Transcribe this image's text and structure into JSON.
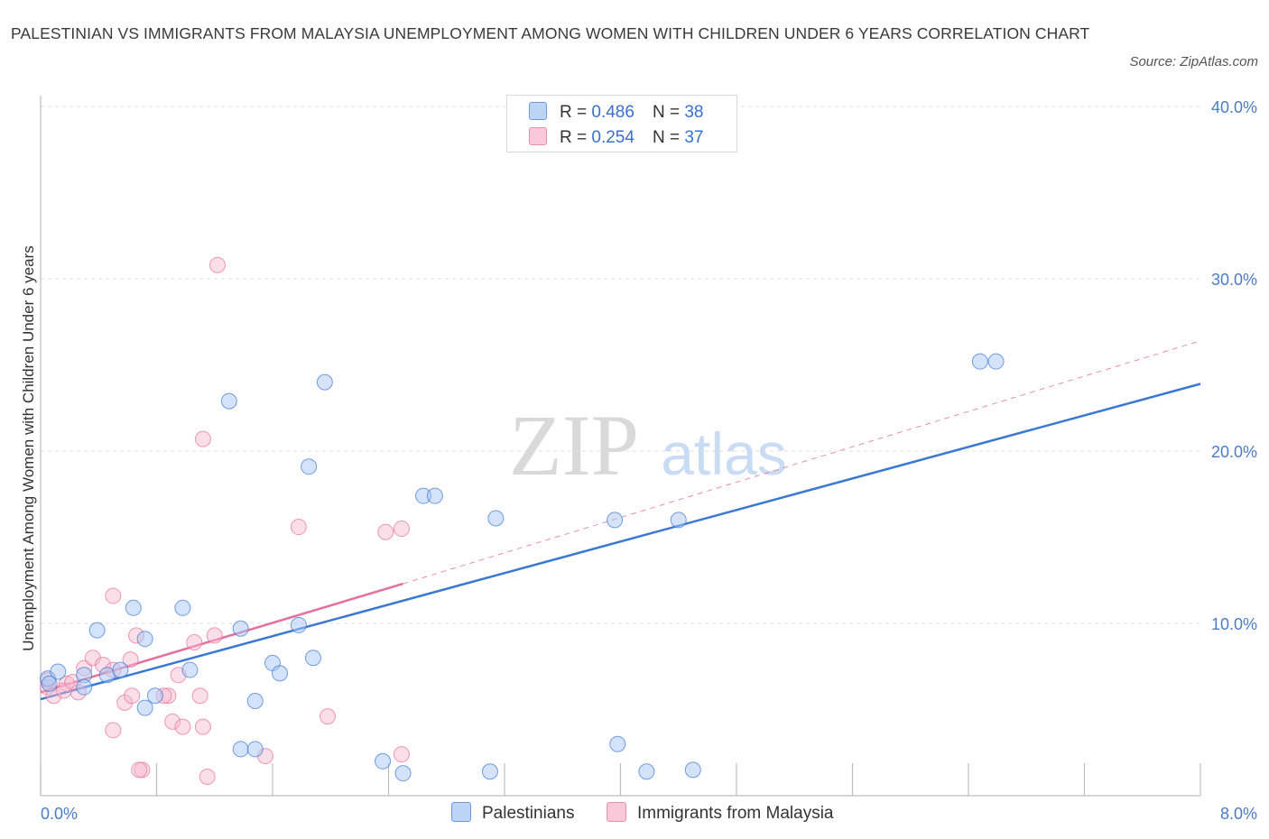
{
  "title": "PALESTINIAN VS IMMIGRANTS FROM MALAYSIA UNEMPLOYMENT AMONG WOMEN WITH CHILDREN UNDER 6 YEARS CORRELATION CHART",
  "source": "Source: ZipAtlas.com",
  "watermark": {
    "zip": "ZIP",
    "atlas": "atlas"
  },
  "colors": {
    "blue": "#3a78d4",
    "blue_fill": "#a9c7f3",
    "pink": "#e5709b",
    "pink_fill": "#f7b9cd",
    "axis_text": "#4a7cc9",
    "grid": "#dddddd"
  },
  "legend": {
    "rows": [
      {
        "r_label": "R =",
        "r_value": "0.486",
        "n_label": "N =",
        "n_value": "38",
        "series": "Palestinians"
      },
      {
        "r_label": "R =",
        "r_value": "0.254",
        "n_label": "N =",
        "n_value": "37",
        "series": "Immigrants from Malaysia"
      }
    ]
  },
  "bottom_legend": {
    "palestinians": "Palestinians",
    "malaysia": "Immigrants from Malaysia"
  },
  "chart_data": {
    "type": "scatter",
    "title": "PALESTINIAN VS IMMIGRANTS FROM MALAYSIA UNEMPLOYMENT AMONG WOMEN WITH CHILDREN UNDER 6 YEARS CORRELATION CHART",
    "xlabel": "",
    "ylabel": "Unemployment Among Women with Children Under 6 years",
    "xlim": [
      0,
      8
    ],
    "ylim": [
      0,
      40
    ],
    "x_tick_labels": [
      "0.0%",
      "8.0%"
    ],
    "y_ticks": [
      10,
      20,
      30,
      40
    ],
    "y_tick_labels": [
      "10.0%",
      "20.0%",
      "30.0%",
      "40.0%"
    ],
    "grid": true,
    "series": [
      {
        "name": "Palestinians",
        "color": "#3a78d4",
        "points": [
          [
            0.05,
            6.8
          ],
          [
            0.12,
            7.2
          ],
          [
            0.3,
            7.0
          ],
          [
            0.3,
            6.3
          ],
          [
            0.39,
            9.6
          ],
          [
            0.46,
            7.0
          ],
          [
            0.55,
            7.3
          ],
          [
            0.64,
            10.9
          ],
          [
            0.72,
            9.1
          ],
          [
            0.72,
            5.1
          ],
          [
            0.79,
            5.8
          ],
          [
            0.98,
            10.9
          ],
          [
            1.03,
            7.3
          ],
          [
            1.3,
            22.9
          ],
          [
            1.38,
            9.7
          ],
          [
            1.48,
            5.5
          ],
          [
            1.6,
            7.7
          ],
          [
            1.65,
            7.1
          ],
          [
            1.78,
            9.9
          ],
          [
            1.85,
            19.1
          ],
          [
            1.96,
            24.0
          ],
          [
            1.88,
            8.0
          ],
          [
            2.64,
            17.4
          ],
          [
            2.72,
            17.4
          ],
          [
            3.14,
            16.1
          ],
          [
            3.96,
            16.0
          ],
          [
            4.4,
            16.0
          ],
          [
            4.18,
            1.4
          ],
          [
            4.5,
            1.5
          ],
          [
            3.98,
            3.0
          ],
          [
            3.1,
            1.4
          ],
          [
            2.5,
            1.3
          ],
          [
            2.36,
            2.0
          ],
          [
            1.38,
            2.7
          ],
          [
            1.48,
            2.7
          ],
          [
            6.48,
            25.2
          ],
          [
            6.59,
            25.2
          ],
          [
            0.06,
            6.5
          ]
        ],
        "trend": {
          "x": [
            0,
            8
          ],
          "y": [
            5.6,
            23.9
          ]
        }
      },
      {
        "name": "Immigrants from Malaysia",
        "color": "#e5709b",
        "points": [
          [
            0.05,
            6.3
          ],
          [
            0.09,
            5.8
          ],
          [
            0.18,
            6.5
          ],
          [
            0.26,
            6.0
          ],
          [
            0.3,
            7.4
          ],
          [
            0.36,
            8.0
          ],
          [
            0.43,
            7.6
          ],
          [
            0.5,
            7.3
          ],
          [
            0.58,
            5.4
          ],
          [
            0.63,
            5.8
          ],
          [
            0.5,
            11.6
          ],
          [
            0.62,
            7.9
          ],
          [
            0.66,
            9.3
          ],
          [
            0.7,
            1.5
          ],
          [
            0.68,
            1.5
          ],
          [
            0.5,
            3.8
          ],
          [
            0.88,
            5.8
          ],
          [
            0.91,
            4.3
          ],
          [
            0.98,
            4.0
          ],
          [
            0.95,
            7.0
          ],
          [
            1.06,
            8.9
          ],
          [
            1.1,
            5.8
          ],
          [
            1.12,
            4.0
          ],
          [
            1.15,
            1.1
          ],
          [
            1.2,
            9.3
          ],
          [
            1.22,
            30.8
          ],
          [
            1.12,
            20.7
          ],
          [
            1.55,
            2.3
          ],
          [
            1.78,
            15.6
          ],
          [
            1.98,
            4.6
          ],
          [
            2.38,
            15.3
          ],
          [
            2.49,
            15.5
          ],
          [
            2.49,
            2.4
          ],
          [
            0.16,
            6.1
          ],
          [
            0.85,
            5.8
          ],
          [
            0.05,
            6.7
          ],
          [
            0.22,
            6.6
          ]
        ],
        "trend": {
          "x": [
            0,
            2.5
          ],
          "y": [
            6.0,
            12.3
          ]
        },
        "trend_extension": {
          "x": [
            2.5,
            8
          ],
          "y": [
            12.3,
            26.4
          ]
        }
      }
    ]
  }
}
